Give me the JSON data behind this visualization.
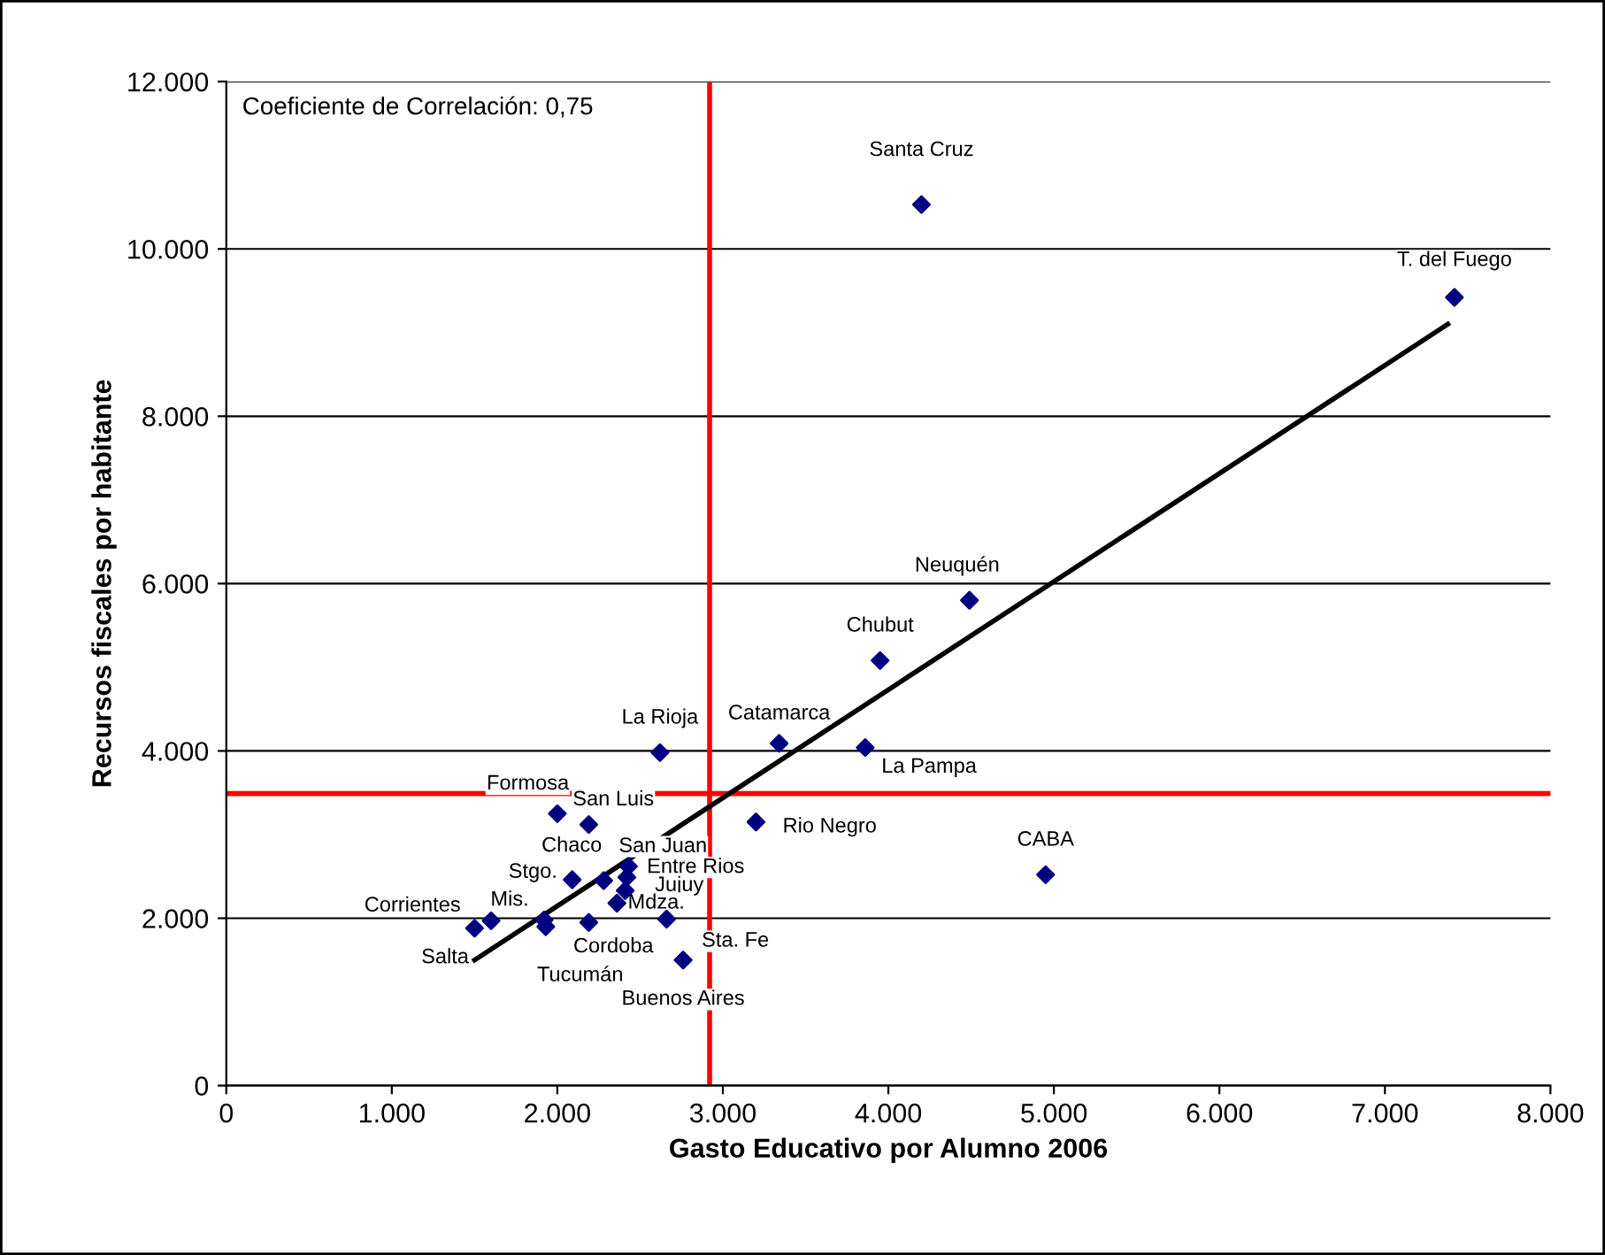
{
  "chart_data": {
    "type": "scatter",
    "xlabel": "Gasto Educativo por Alumno 2006",
    "ylabel": "Recursos fiscales por habitante",
    "annotations": [
      "Coeficiente de Correlación: 0,75"
    ],
    "xlim": [
      0,
      8000
    ],
    "ylim": [
      0,
      12000
    ],
    "xticks": [
      0,
      {
        "value": 1000,
        "label": "1.000"
      },
      {
        "value": 2000,
        "label": "2.000"
      },
      {
        "value": 3000,
        "label": "3.000"
      },
      {
        "value": 4000,
        "label": "4.000"
      },
      {
        "value": 5000,
        "label": "5.000"
      },
      {
        "value": 6000,
        "label": "6.000"
      },
      {
        "value": 7000,
        "label": "7.000"
      },
      {
        "value": 8000,
        "label": "8.000"
      }
    ],
    "yticks": [
      0,
      {
        "value": 2000,
        "label": "2.000"
      },
      {
        "value": 4000,
        "label": "4.000"
      },
      {
        "value": 6000,
        "label": "6.000"
      },
      {
        "value": 8000,
        "label": "8.000"
      },
      {
        "value": 10000,
        "label": "10.000"
      },
      {
        "value": 12000,
        "label": "12.000"
      }
    ],
    "grid": "y",
    "ref_lines": [
      {
        "axis": "x",
        "value": 2920,
        "color": "#ff0000"
      },
      {
        "axis": "y",
        "value": 3490,
        "color": "#ff0000"
      }
    ],
    "series": [
      {
        "marker": "diamond",
        "color": "#000080",
        "x": [
          4200,
          7420,
          4490,
          3950,
          2620,
          3340,
          3860,
          2000,
          2190,
          3200,
          2430,
          2420,
          2280,
          2090,
          2410,
          2360,
          1600,
          1500,
          1920,
          1930,
          2190,
          2660,
          2760,
          4950
        ],
        "values": [
          10530,
          9420,
          5800,
          5080,
          3980,
          4090,
          4040,
          3250,
          3120,
          3150,
          2620,
          2490,
          2450,
          2460,
          2330,
          2180,
          1970,
          1880,
          1980,
          1900,
          1950,
          1990,
          1500,
          2520
        ],
        "value_labels": [
          "Santa Cruz",
          "T. del Fuego",
          "Neuquén",
          "Chubut",
          "La Rioja",
          "Catamarca",
          "La Pampa",
          "Formosa",
          "San Luis",
          "Rio Negro",
          "San Juan",
          "Entre Rios",
          "Chaco",
          "Stgo.",
          "Jujuy",
          "Mdza.",
          "Corrientes",
          "Salta",
          "Mis.",
          "Tucumán",
          "Cordoba",
          "Sta. Fe",
          "Buenos Aires",
          "CABA"
        ]
      },
      {
        "type": "line",
        "color": "#000000",
        "x": [
          1500,
          7380
        ],
        "values": [
          1500,
          9100
        ]
      }
    ]
  }
}
